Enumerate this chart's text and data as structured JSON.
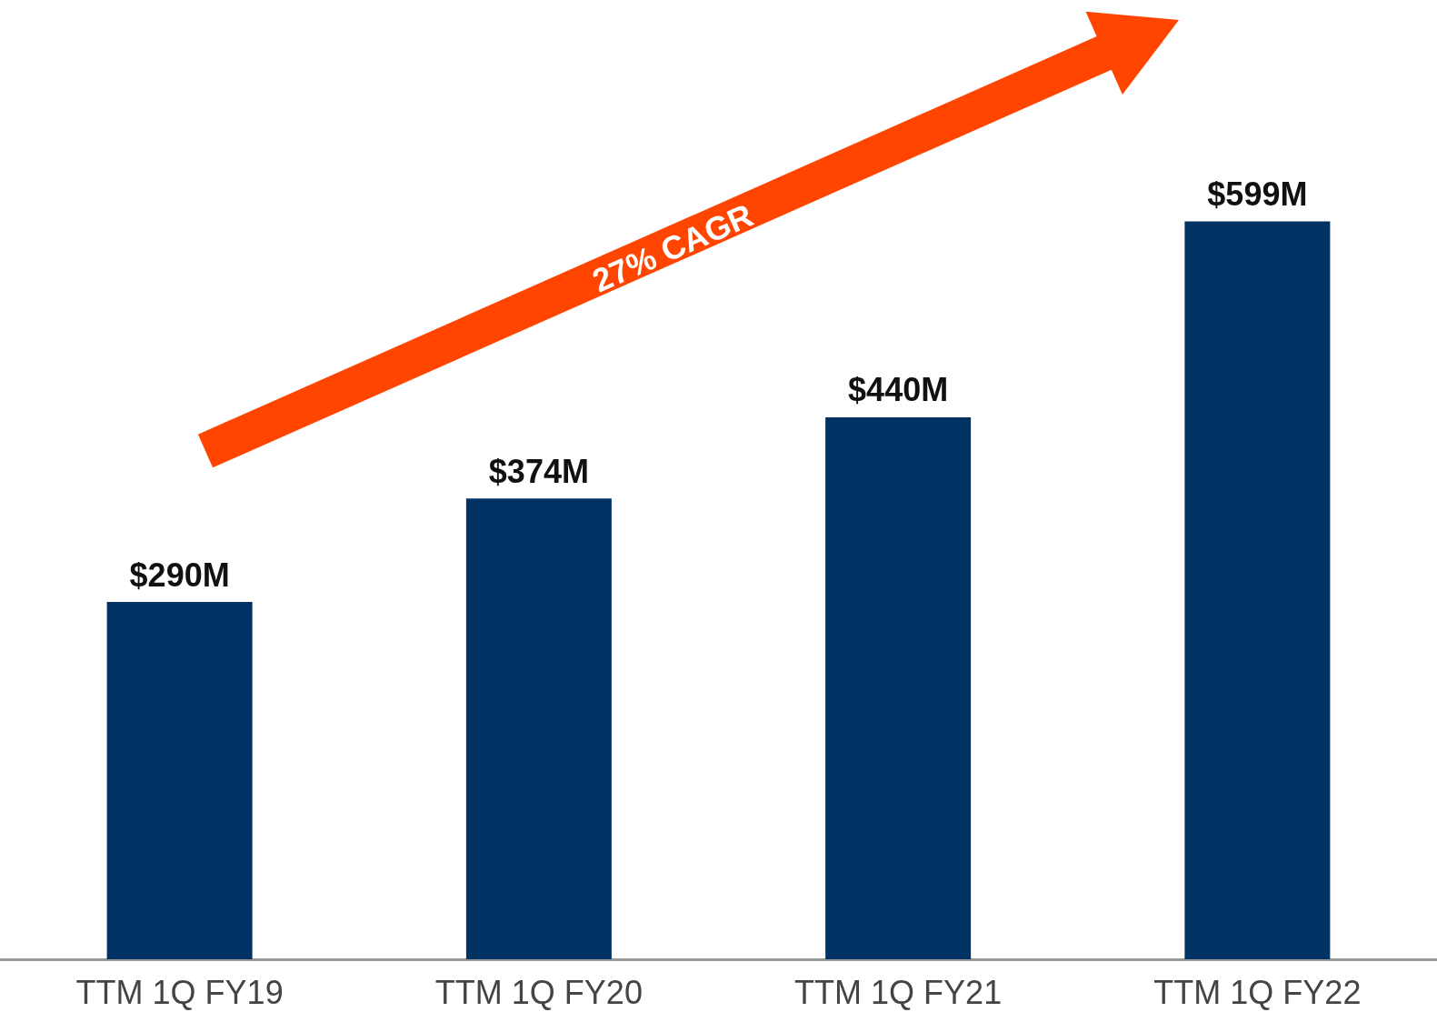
{
  "chart_data": {
    "type": "bar",
    "categories": [
      "TTM 1Q FY19",
      "TTM 1Q FY20",
      "TTM 1Q FY21",
      "TTM 1Q FY22"
    ],
    "values": [
      290,
      374,
      440,
      599
    ],
    "color": "#003263",
    "value_labels": [
      "$290M",
      "$374M",
      "$440M",
      "$599M"
    ],
    "annotations": [
      "27% CAGR"
    ]
  }
}
